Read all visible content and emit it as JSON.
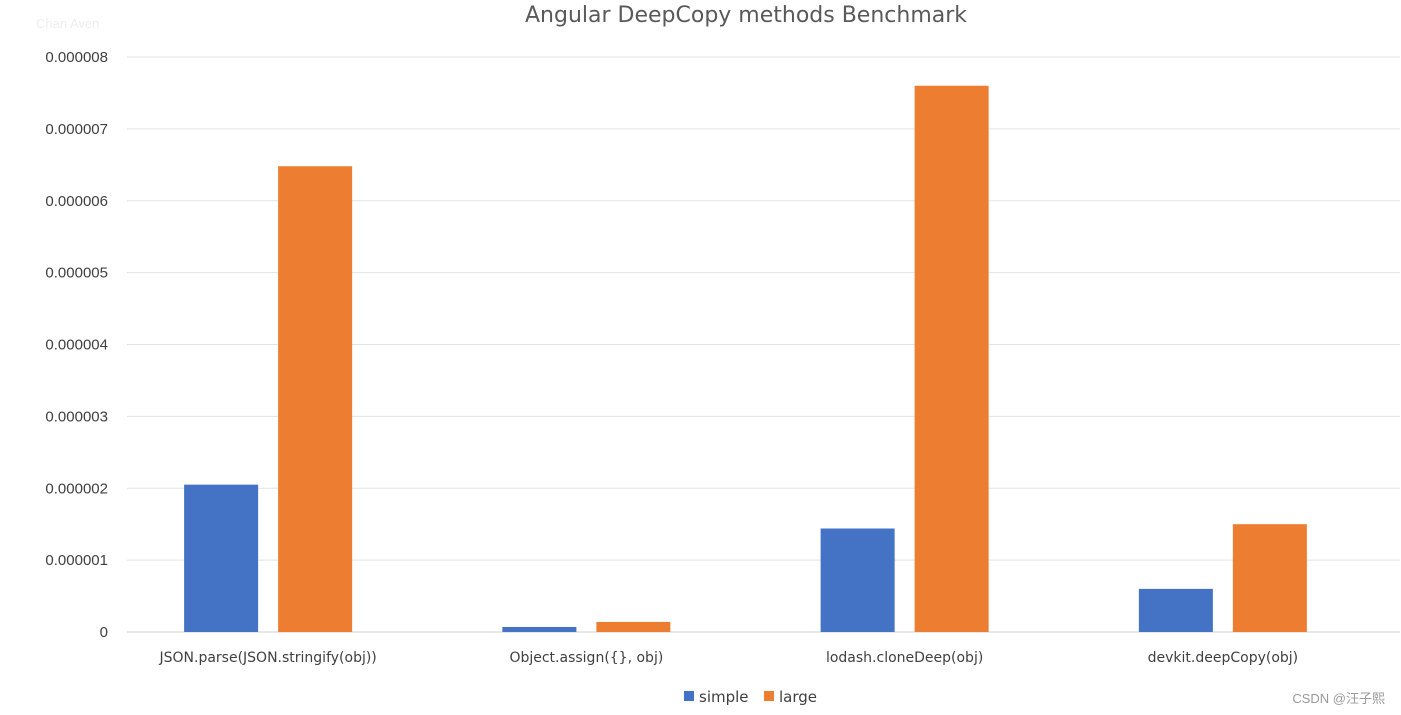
{
  "chart_data": {
    "type": "bar",
    "title": "Angular DeepCopy methods Benchmark",
    "categories": [
      "JSON.parse(JSON.stringify(obj))",
      "Object.assign({}, obj)",
      "lodash.cloneDeep(obj)",
      "devkit.deepCopy(obj)"
    ],
    "series": [
      {
        "name": "simple",
        "color": "#4472C4",
        "values": [
          2.05e-06,
          7e-08,
          1.44e-06,
          6e-07
        ]
      },
      {
        "name": "large",
        "color": "#ED7D31",
        "values": [
          6.48e-06,
          1.4e-07,
          7.6e-06,
          1.5e-06
        ]
      }
    ],
    "ylim": [
      0,
      8e-06
    ],
    "yticks": [
      "0",
      "0.000001",
      "0.000002",
      "0.000003",
      "0.000004",
      "0.000005",
      "0.000006",
      "0.000007",
      "0.000008"
    ],
    "grid": true,
    "legend_position": "bottom"
  },
  "overlay": {
    "faded_label": "Chan Aven",
    "watermark": "CSDN @汪子熙"
  }
}
